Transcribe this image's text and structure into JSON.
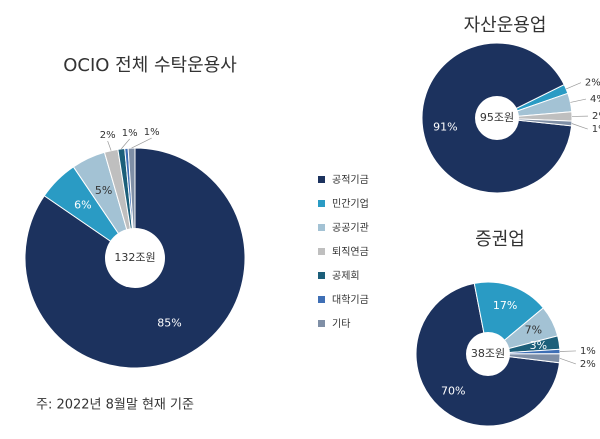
{
  "legend": {
    "categories": [
      "공적기금",
      "민간기업",
      "공공기관",
      "퇴직연금",
      "공제회",
      "대학기금",
      "기타"
    ],
    "colors": [
      "#1c325e",
      "#2a9bc4",
      "#a3c2d4",
      "#bfbfbf",
      "#1c5f7a",
      "#3f6fb5",
      "#7f8fa6"
    ]
  },
  "chart_data": [
    {
      "type": "pie",
      "title": "OCIO 전체 수탁운용사",
      "center_label": "132조원",
      "values": [
        85,
        6,
        5,
        2,
        1,
        0.5,
        1
      ],
      "value_labels": [
        "85%",
        "6%",
        "5%",
        "2%",
        "1%",
        null,
        "1%"
      ]
    },
    {
      "type": "pie",
      "title": "자산운용업",
      "center_label": "95조원",
      "values": [
        91,
        2,
        4,
        2,
        null,
        null,
        1
      ],
      "value_labels": [
        "91%",
        "2%",
        "4%",
        "2%",
        null,
        null,
        "1%"
      ]
    },
    {
      "type": "pie",
      "title": "증권업",
      "center_label": "38조원",
      "values": [
        70,
        17,
        7,
        null,
        3,
        1,
        2
      ],
      "value_labels": [
        "70%",
        "17%",
        "7%",
        null,
        "3%",
        "1%",
        "2%"
      ]
    }
  ],
  "note": "주: 2022년 8월말 현재 기준"
}
